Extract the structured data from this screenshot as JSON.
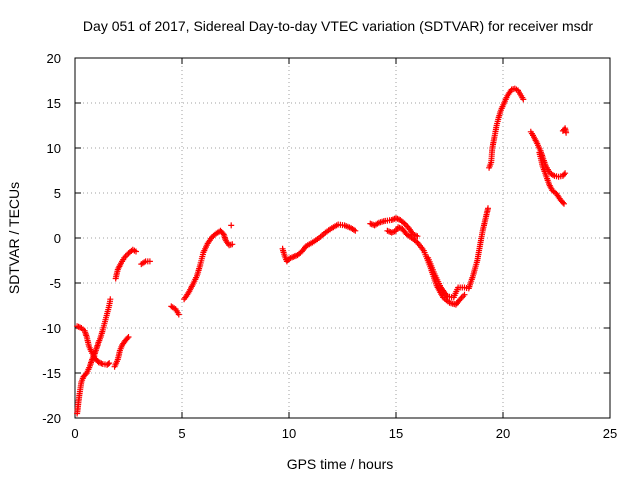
{
  "chart_data": {
    "type": "scatter",
    "title": "Day 051 of 2017, Sidereal Day-to-day VTEC variation (SDTVAR) for receiver msdr",
    "xlabel": "GPS time / hours",
    "ylabel": "SDTVAR / TECUs",
    "xlim": [
      0,
      25
    ],
    "ylim": [
      -20,
      20
    ],
    "xticks": [
      "0",
      "5",
      "10",
      "15",
      "20",
      "25"
    ],
    "yticks": [
      "-20",
      "-15",
      "-10",
      "-5",
      "0",
      "5",
      "10",
      "15",
      "20"
    ],
    "grid": true,
    "marker": "+",
    "series_color": "#ff0000",
    "segments": [
      [
        [
          0.1,
          -19.5
        ],
        [
          0.15,
          -18.5
        ],
        [
          0.2,
          -17.5
        ],
        [
          0.3,
          -16
        ],
        [
          0.4,
          -15.4
        ],
        [
          0.55,
          -15
        ],
        [
          0.7,
          -14.2
        ],
        [
          0.8,
          -13.5
        ],
        [
          0.9,
          -13
        ],
        [
          1.0,
          -12.3
        ],
        [
          1.1,
          -11.6
        ],
        [
          1.2,
          -11
        ],
        [
          1.3,
          -10.2
        ],
        [
          1.4,
          -9.3
        ],
        [
          1.5,
          -8.4
        ],
        [
          1.6,
          -7.5
        ],
        [
          1.65,
          -6.8
        ]
      ],
      [
        [
          0.1,
          -9.8
        ],
        [
          0.3,
          -10
        ],
        [
          0.45,
          -10.3
        ],
        [
          0.55,
          -11
        ],
        [
          0.65,
          -12
        ],
        [
          0.8,
          -12.8
        ],
        [
          0.95,
          -13.4
        ],
        [
          1.1,
          -13.8
        ],
        [
          1.3,
          -14
        ],
        [
          1.5,
          -14.1
        ],
        [
          1.6,
          -13.9
        ]
      ],
      [
        [
          1.85,
          -14.3
        ],
        [
          2.0,
          -13.5
        ],
        [
          2.1,
          -12.5
        ],
        [
          2.2,
          -11.9
        ],
        [
          2.35,
          -11.4
        ],
        [
          2.5,
          -11
        ]
      ],
      [
        [
          1.9,
          -4.5
        ],
        [
          2.0,
          -3.5
        ],
        [
          2.15,
          -2.8
        ],
        [
          2.3,
          -2.2
        ],
        [
          2.5,
          -1.7
        ],
        [
          2.7,
          -1.3
        ],
        [
          2.85,
          -1.5
        ]
      ],
      [
        [
          3.1,
          -2.9
        ],
        [
          3.3,
          -2.6
        ],
        [
          3.5,
          -2.6
        ]
      ],
      [
        [
          4.5,
          -7.6
        ],
        [
          4.7,
          -7.9
        ],
        [
          4.85,
          -8.5
        ]
      ],
      [
        [
          5.1,
          -6.8
        ],
        [
          5.3,
          -6.1
        ],
        [
          5.5,
          -5.2
        ],
        [
          5.7,
          -4.2
        ],
        [
          5.85,
          -3
        ],
        [
          6.0,
          -1.6
        ],
        [
          6.2,
          -0.6
        ],
        [
          6.4,
          0.1
        ],
        [
          6.6,
          0.5
        ],
        [
          6.8,
          0.8
        ],
        [
          6.95,
          0.4
        ],
        [
          7.05,
          -0.3
        ],
        [
          7.2,
          -0.8
        ],
        [
          7.35,
          -0.7
        ]
      ],
      [
        [
          7.3,
          1.4
        ]
      ],
      [
        [
          9.7,
          -1.2
        ],
        [
          9.8,
          -2
        ],
        [
          9.9,
          -2.6
        ],
        [
          10.0,
          -2.3
        ],
        [
          10.2,
          -2.1
        ],
        [
          10.4,
          -1.9
        ],
        [
          10.6,
          -1.5
        ],
        [
          10.8,
          -0.9
        ],
        [
          11.1,
          -0.5
        ],
        [
          11.4,
          0
        ],
        [
          11.7,
          0.6
        ],
        [
          12.0,
          1.1
        ],
        [
          12.3,
          1.5
        ],
        [
          12.6,
          1.4
        ],
        [
          12.9,
          1.1
        ],
        [
          13.1,
          0.8
        ]
      ],
      [
        [
          13.8,
          1.6
        ],
        [
          14.0,
          1.4
        ],
        [
          14.2,
          1.7
        ],
        [
          14.5,
          1.9
        ],
        [
          14.8,
          2
        ],
        [
          15.0,
          2.2
        ],
        [
          15.2,
          2
        ],
        [
          15.4,
          1.6
        ],
        [
          15.6,
          1.1
        ],
        [
          15.8,
          0.4
        ],
        [
          16.0,
          0.2
        ]
      ],
      [
        [
          14.6,
          0.8
        ],
        [
          14.8,
          0.6
        ],
        [
          15.0,
          0.8
        ],
        [
          15.1,
          1.2
        ],
        [
          15.3,
          1
        ],
        [
          15.5,
          0.4
        ],
        [
          15.8,
          -0.1
        ],
        [
          16.0,
          -0.5
        ],
        [
          16.3,
          -1.4
        ],
        [
          16.6,
          -3.2
        ],
        [
          16.9,
          -5.3
        ],
        [
          17.2,
          -6.6
        ],
        [
          17.5,
          -7.2
        ],
        [
          17.8,
          -7.4
        ],
        [
          18.0,
          -6.8
        ],
        [
          18.2,
          -6.3
        ]
      ],
      [
        [
          16.5,
          -2.2
        ],
        [
          16.8,
          -4
        ],
        [
          17.1,
          -5.5
        ],
        [
          17.4,
          -6.5
        ],
        [
          17.7,
          -6.6
        ],
        [
          17.9,
          -5.5
        ],
        [
          18.2,
          -5.5
        ],
        [
          18.4,
          -5.6
        ],
        [
          18.6,
          -4.2
        ],
        [
          18.8,
          -2.5
        ],
        [
          18.95,
          -0.5
        ],
        [
          19.05,
          0.8
        ],
        [
          19.15,
          1.8
        ],
        [
          19.25,
          2.8
        ],
        [
          19.3,
          3.3
        ]
      ],
      [
        [
          19.35,
          7.8
        ],
        [
          19.45,
          8.4
        ],
        [
          19.5,
          10
        ],
        [
          19.6,
          11.2
        ],
        [
          19.7,
          12.5
        ],
        [
          19.8,
          13.4
        ],
        [
          19.9,
          14.2
        ],
        [
          20.05,
          15
        ],
        [
          20.2,
          15.8
        ],
        [
          20.4,
          16.5
        ],
        [
          20.55,
          16.6
        ],
        [
          20.7,
          16.4
        ],
        [
          20.85,
          15.8
        ],
        [
          20.95,
          15.4
        ]
      ],
      [
        [
          21.3,
          11.8
        ],
        [
          21.45,
          11.2
        ],
        [
          21.6,
          10.5
        ],
        [
          21.75,
          9.7
        ],
        [
          21.85,
          9
        ],
        [
          22.0,
          8
        ],
        [
          22.2,
          7.2
        ],
        [
          22.4,
          6.9
        ],
        [
          22.6,
          6.8
        ],
        [
          22.8,
          6.9
        ],
        [
          22.9,
          7.2
        ]
      ],
      [
        [
          21.7,
          9.5
        ],
        [
          21.85,
          8
        ],
        [
          22.0,
          7
        ],
        [
          22.15,
          6
        ],
        [
          22.3,
          5.3
        ],
        [
          22.5,
          4.9
        ],
        [
          22.7,
          4.2
        ],
        [
          22.85,
          3.8
        ]
      ],
      [
        [
          22.8,
          11.9
        ],
        [
          22.9,
          12.2
        ],
        [
          22.95,
          11.7
        ]
      ]
    ]
  }
}
